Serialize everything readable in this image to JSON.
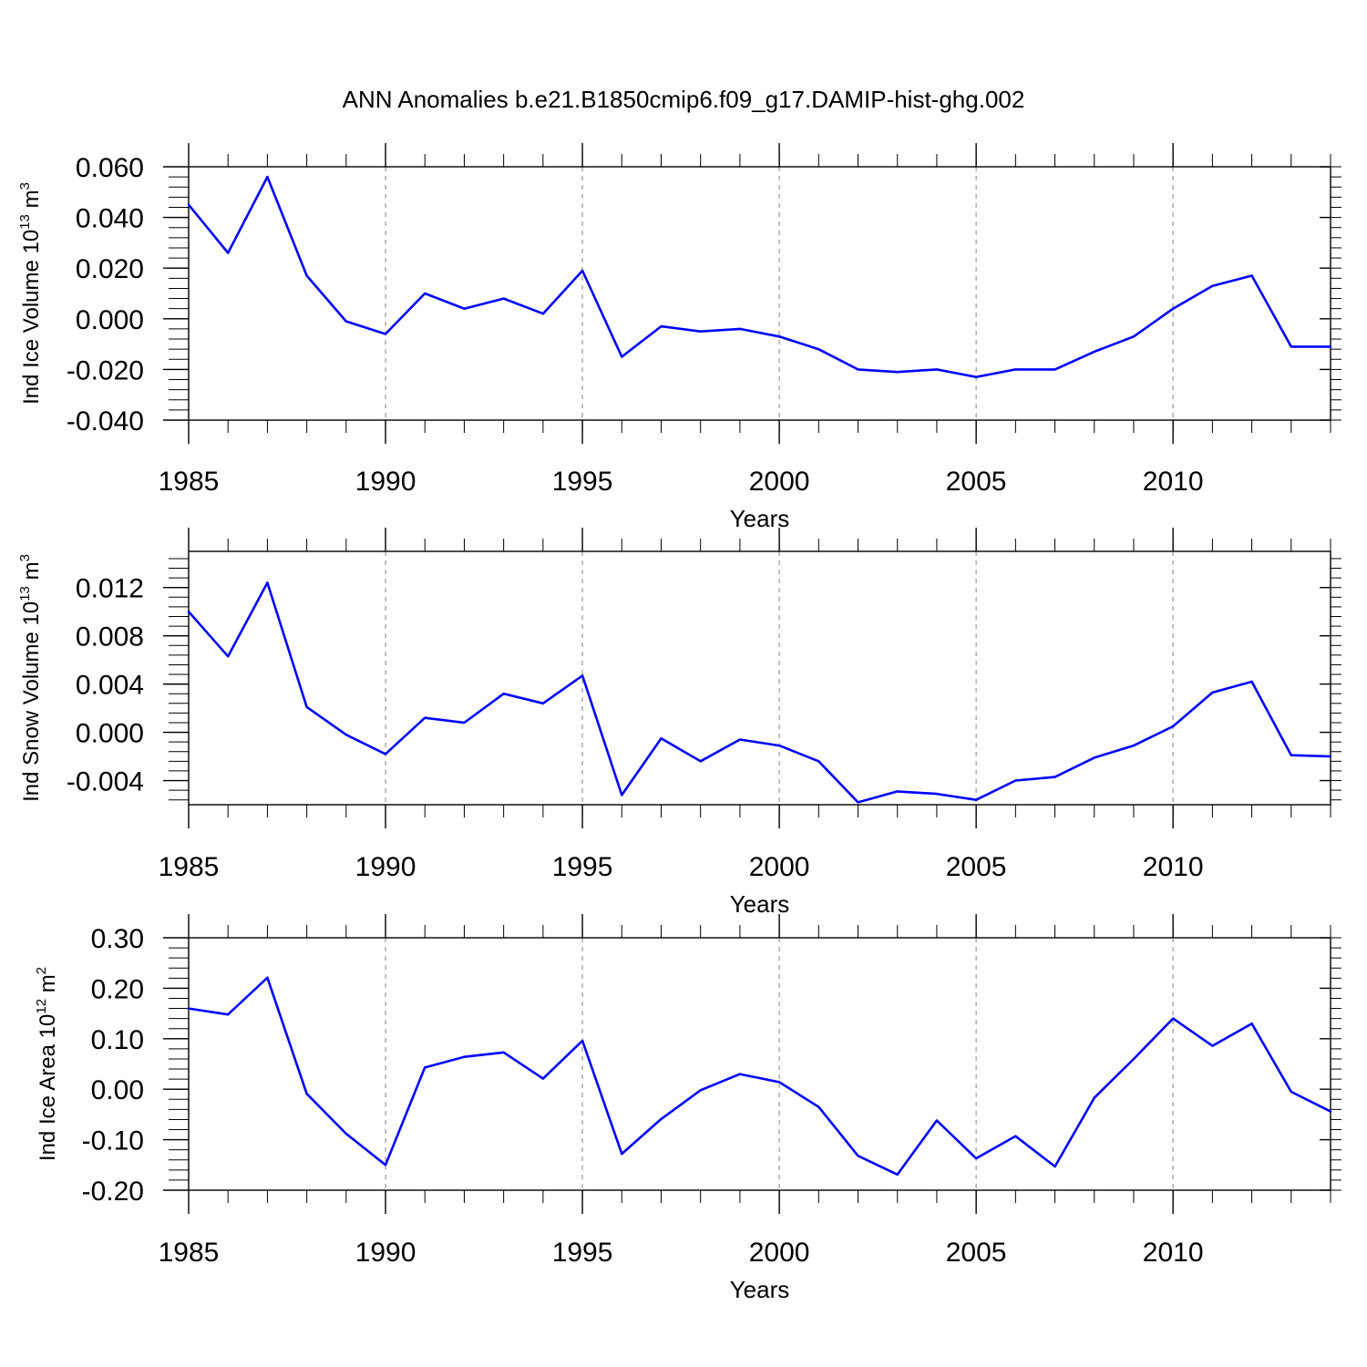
{
  "title": "ANN Anomalies b.e21.B1850cmip6.f09_g17.DAMIP-hist-ghg.002",
  "line_color": "#0000ff",
  "chart_data": [
    {
      "type": "line",
      "name": "ice-volume",
      "ylabel": {
        "main": "Ind Ice Volume 10",
        "exp": "13",
        "unit": " m",
        "unit_exp": "3"
      },
      "xlabel": "Years",
      "xlim": [
        1985,
        2014
      ],
      "ylim": [
        -0.04,
        0.06
      ],
      "yticks": [
        "0.060",
        "0.040",
        "0.020",
        "0.000",
        "-0.020",
        "-0.040"
      ],
      "ytick_values": [
        0.06,
        0.04,
        0.02,
        0.0,
        -0.02,
        -0.04
      ],
      "xticks": [
        "1985",
        "1990",
        "1995",
        "2000",
        "2005",
        "2010"
      ],
      "xtick_values": [
        1985,
        1990,
        1995,
        2000,
        2005,
        2010
      ],
      "x": [
        1985,
        1986,
        1987,
        1988,
        1989,
        1990,
        1991,
        1992,
        1993,
        1994,
        1995,
        1996,
        1997,
        1998,
        1999,
        2000,
        2001,
        2002,
        2003,
        2004,
        2005,
        2006,
        2007,
        2008,
        2009,
        2010,
        2011,
        2012,
        2013,
        2014
      ],
      "values": [
        0.045,
        0.026,
        0.056,
        0.017,
        -0.001,
        -0.006,
        0.01,
        0.004,
        0.008,
        0.002,
        0.019,
        -0.015,
        -0.003,
        -0.005,
        -0.004,
        -0.007,
        -0.012,
        -0.02,
        -0.021,
        -0.02,
        -0.023,
        -0.02,
        -0.02,
        -0.013,
        -0.007,
        0.004,
        0.013,
        0.017,
        -0.011,
        -0.011
      ]
    },
    {
      "type": "line",
      "name": "snow-volume",
      "ylabel": {
        "main": "Ind Snow Volume 10",
        "exp": "13",
        "unit": " m",
        "unit_exp": "3"
      },
      "xlabel": "Years",
      "xlim": [
        1985,
        2014
      ],
      "ylim": [
        -0.006,
        0.015
      ],
      "yticks": [
        "0.012",
        "0.008",
        "0.004",
        "0.000",
        "-0.004"
      ],
      "ytick_values": [
        0.012,
        0.008,
        0.004,
        0.0,
        -0.004
      ],
      "xticks": [
        "1985",
        "1990",
        "1995",
        "2000",
        "2005",
        "2010"
      ],
      "xtick_values": [
        1985,
        1990,
        1995,
        2000,
        2005,
        2010
      ],
      "x": [
        1985,
        1986,
        1987,
        1988,
        1989,
        1990,
        1991,
        1992,
        1993,
        1994,
        1995,
        1996,
        1997,
        1998,
        1999,
        2000,
        2001,
        2002,
        2003,
        2004,
        2005,
        2006,
        2007,
        2008,
        2009,
        2010,
        2011,
        2012,
        2013,
        2014
      ],
      "values": [
        0.01,
        0.0063,
        0.0124,
        0.0021,
        -0.0002,
        -0.0018,
        0.0012,
        0.0008,
        0.0032,
        0.0024,
        0.0047,
        -0.0052,
        -0.0005,
        -0.0024,
        -0.0006,
        -0.0011,
        -0.0024,
        -0.0058,
        -0.0049,
        -0.0051,
        -0.0056,
        -0.004,
        -0.0037,
        -0.0021,
        -0.0011,
        0.0005,
        0.0033,
        0.0042,
        -0.0019,
        -0.002
      ]
    },
    {
      "type": "line",
      "name": "ice-area",
      "ylabel": {
        "main": "Ind Ice Area 10",
        "exp": "12",
        "unit": " m",
        "unit_exp": "2"
      },
      "xlabel": "Years",
      "xlim": [
        1985,
        2014
      ],
      "ylim": [
        -0.2,
        0.3
      ],
      "yticks": [
        "0.30",
        "0.20",
        "0.10",
        "0.00",
        "-0.10",
        "-0.20"
      ],
      "ytick_values": [
        0.3,
        0.2,
        0.1,
        0.0,
        -0.1,
        -0.2
      ],
      "xticks": [
        "1985",
        "1990",
        "1995",
        "2000",
        "2005",
        "2010"
      ],
      "xtick_values": [
        1985,
        1990,
        1995,
        2000,
        2005,
        2010
      ],
      "x": [
        1985,
        1986,
        1987,
        1988,
        1989,
        1990,
        1991,
        1992,
        1993,
        1994,
        1995,
        1996,
        1997,
        1998,
        1999,
        2000,
        2001,
        2002,
        2003,
        2004,
        2005,
        2006,
        2007,
        2008,
        2009,
        2010,
        2011,
        2012,
        2013,
        2014
      ],
      "values": [
        0.16,
        0.148,
        0.221,
        -0.009,
        -0.088,
        -0.15,
        0.043,
        0.064,
        0.073,
        0.021,
        0.096,
        -0.128,
        -0.059,
        -0.002,
        0.03,
        0.014,
        -0.035,
        -0.132,
        -0.169,
        -0.062,
        -0.137,
        -0.093,
        -0.153,
        -0.017,
        0.06,
        0.14,
        0.086,
        0.13,
        -0.005,
        -0.044
      ]
    }
  ]
}
